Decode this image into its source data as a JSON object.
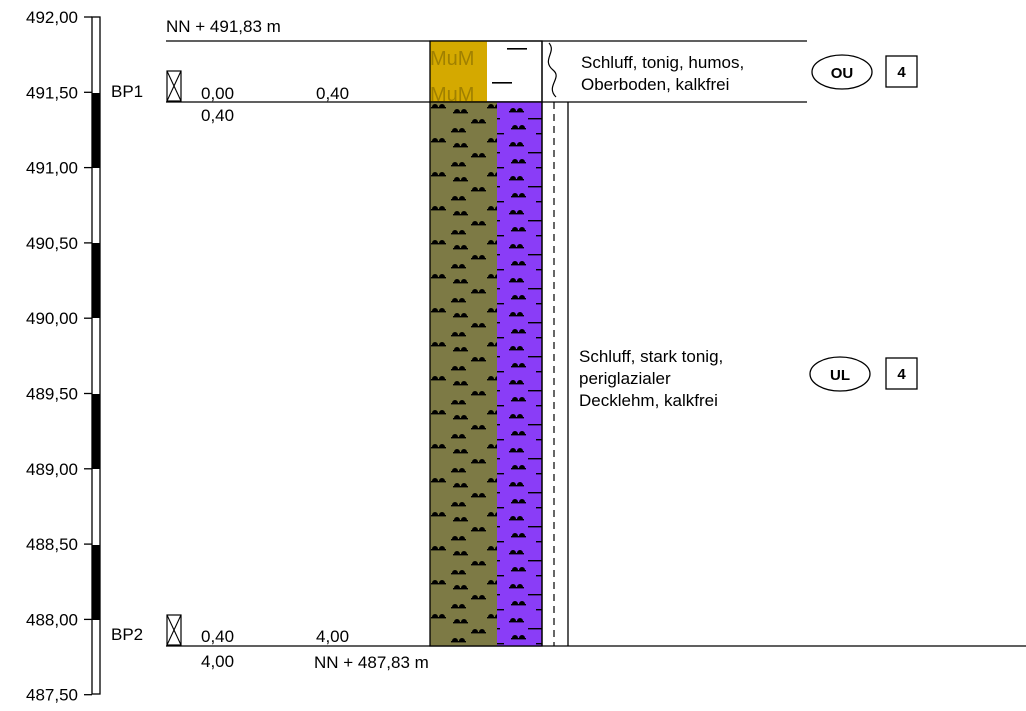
{
  "scale": {
    "ticks": [
      "492,00",
      "491,50",
      "491,00",
      "490,50",
      "490,00",
      "489,50",
      "489,00",
      "488,50",
      "488,00",
      "487,50"
    ]
  },
  "top_level_label": "NN + 491,83 m",
  "bottom_level_label": "NN + 487,83 m",
  "samples": [
    {
      "name": "BP1",
      "from": "0,00",
      "to": "0,40",
      "depth_below": "0,40"
    },
    {
      "name": "BP2",
      "from": "0,40",
      "to": "4,00",
      "depth_below": "4,00"
    }
  ],
  "layers": [
    {
      "description": [
        "Schluff, tonig, humos,",
        "Oberboden, kalkfrei"
      ],
      "soil_group": "OU",
      "class": "4",
      "pattern_text": "MuM",
      "color_left": "#d4a900"
    },
    {
      "description": [
        "Schluff, stark tonig,",
        "periglazialer",
        "Decklehm, kalkfrei"
      ],
      "soil_group": "UL",
      "class": "4",
      "color_left": "#7d7a45",
      "color_right": "#8a3df7"
    }
  ]
}
